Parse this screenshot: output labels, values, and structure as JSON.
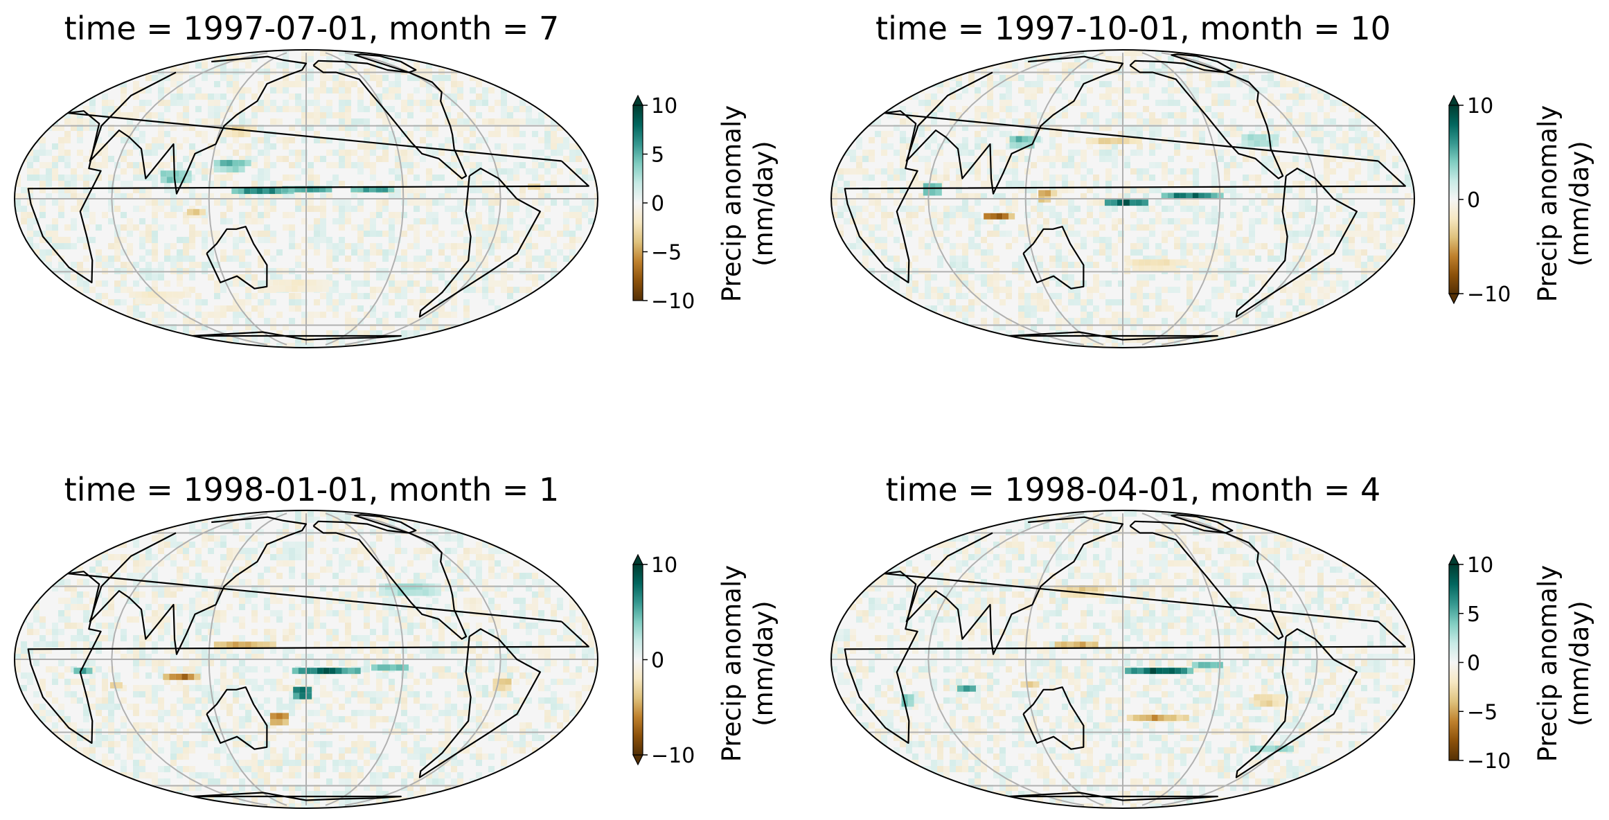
{
  "figure": {
    "colormap": "BrBG",
    "colormap_stops": [
      "#543005",
      "#8c510a",
      "#bf812d",
      "#dfc27d",
      "#f6e8c3",
      "#f5f5f5",
      "#c7eae5",
      "#80cdc1",
      "#35978f",
      "#01665e",
      "#003c30"
    ],
    "background": "#f5f5f5",
    "coastline_color": "#000000",
    "gridline_color": "#b0b0b0"
  },
  "panels": [
    {
      "title": "time = 1997-07-01, month = 7",
      "colorbar": {
        "label_line1": "Precip anomaly",
        "label_line2": "(mm/day)",
        "ticks": [
          "10",
          "5",
          "0",
          "−5",
          "−10"
        ],
        "tick_values": [
          10,
          5,
          0,
          -5,
          -10
        ],
        "range": [
          -10,
          10
        ],
        "extend": "max"
      },
      "anomalies": [
        {
          "lon": 150,
          "lat": 5,
          "value": 9,
          "w": 40,
          "h": 5
        },
        {
          "lon": 180,
          "lat": 6,
          "value": 10,
          "w": 45,
          "h": 4
        },
        {
          "lon": 220,
          "lat": 6,
          "value": 10,
          "w": 40,
          "h": 4
        },
        {
          "lon": 95,
          "lat": 10,
          "value": 6,
          "w": 20,
          "h": 10
        },
        {
          "lon": 130,
          "lat": 15,
          "value": 6,
          "w": 25,
          "h": 8
        },
        {
          "lon": 110,
          "lat": -3,
          "value": -6,
          "w": 15,
          "h": 4
        },
        {
          "lon": 130,
          "lat": 30,
          "value": -4,
          "w": 20,
          "h": 8
        },
        {
          "lon": 320,
          "lat": 7,
          "value": -5,
          "w": 12,
          "h": 4
        },
        {
          "lon": 170,
          "lat": -35,
          "value": -2,
          "w": 40,
          "h": 10
        },
        {
          "lon": 60,
          "lat": -40,
          "value": -2,
          "w": 40,
          "h": 8
        }
      ]
    },
    {
      "title": "time = 1997-10-01, month = 10",
      "colorbar": {
        "label_line1": "Precip anomaly",
        "label_line2": "(mm/day)",
        "ticks": [
          "10",
          "0",
          "−10"
        ],
        "tick_values": [
          10,
          0,
          -10
        ],
        "range": [
          -10,
          10
        ],
        "extend": "both"
      },
      "anomalies": [
        {
          "lon": 100,
          "lat": -5,
          "value": -10,
          "w": 20,
          "h": 5
        },
        {
          "lon": 130,
          "lat": 3,
          "value": -7,
          "w": 12,
          "h": 8
        },
        {
          "lon": 180,
          "lat": 0,
          "value": 10,
          "w": 30,
          "h": 6
        },
        {
          "lon": 220,
          "lat": 3,
          "value": 10,
          "w": 40,
          "h": 5
        },
        {
          "lon": 60,
          "lat": 5,
          "value": 7,
          "w": 15,
          "h": 10
        },
        {
          "lon": 170,
          "lat": 25,
          "value": -4,
          "w": 35,
          "h": 6
        },
        {
          "lon": 270,
          "lat": 25,
          "value": 4,
          "w": 25,
          "h": 10
        },
        {
          "lon": 200,
          "lat": -25,
          "value": -3,
          "w": 40,
          "h": 8
        },
        {
          "lon": 110,
          "lat": 25,
          "value": 6,
          "w": 20,
          "h": 8
        }
      ]
    },
    {
      "title": "time = 1998-01-01, month = 1",
      "colorbar": {
        "label_line1": "Precip anomaly",
        "label_line2": "(mm/day)",
        "ticks": [
          "10",
          "0",
          "−10"
        ],
        "tick_values": [
          10,
          0,
          -10
        ],
        "range": [
          -10,
          10
        ],
        "extend": "both"
      },
      "anomalies": [
        {
          "lon": 190,
          "lat": -3,
          "value": 10,
          "w": 45,
          "h": 6
        },
        {
          "lon": 175,
          "lat": -12,
          "value": 10,
          "w": 14,
          "h": 10
        },
        {
          "lon": 230,
          "lat": -1,
          "value": 9,
          "w": 35,
          "h": 4
        },
        {
          "lon": 140,
          "lat": 8,
          "value": -8,
          "w": 50,
          "h": 4
        },
        {
          "lon": 100,
          "lat": -5,
          "value": -9,
          "w": 25,
          "h": 5
        },
        {
          "lon": 160,
          "lat": -22,
          "value": -8,
          "w": 15,
          "h": 8
        },
        {
          "lon": 40,
          "lat": -3,
          "value": 8,
          "w": 15,
          "h": 6
        },
        {
          "lon": 60,
          "lat": -8,
          "value": -6,
          "w": 12,
          "h": 4
        },
        {
          "lon": 300,
          "lat": -8,
          "value": -5,
          "w": 15,
          "h": 8
        },
        {
          "lon": 250,
          "lat": 30,
          "value": 4,
          "w": 40,
          "h": 10
        }
      ]
    },
    {
      "title": "time = 1998-04-01, month = 4",
      "colorbar": {
        "label_line1": "Precip anomaly",
        "label_line2": "(mm/day)",
        "ticks": [
          "10",
          "5",
          "0",
          "−5",
          "−10"
        ],
        "tick_values": [
          10,
          5,
          0,
          -5,
          -10
        ],
        "range": [
          -10,
          10
        ],
        "extend": "max"
      },
      "anomalies": [
        {
          "lon": 200,
          "lat": -3,
          "value": 10,
          "w": 45,
          "h": 6
        },
        {
          "lon": 230,
          "lat": 0,
          "value": 8,
          "w": 30,
          "h": 4
        },
        {
          "lon": 150,
          "lat": 8,
          "value": -8,
          "w": 40,
          "h": 4
        },
        {
          "lon": 200,
          "lat": -22,
          "value": -6,
          "w": 40,
          "h": 6
        },
        {
          "lon": 80,
          "lat": -10,
          "value": 7,
          "w": 15,
          "h": 6
        },
        {
          "lon": 120,
          "lat": -8,
          "value": -5,
          "w": 15,
          "h": 5
        },
        {
          "lon": 150,
          "lat": 30,
          "value": -4,
          "w": 40,
          "h": 8
        },
        {
          "lon": 290,
          "lat": -35,
          "value": 6,
          "w": 40,
          "h": 4
        },
        {
          "lon": 40,
          "lat": -15,
          "value": 6,
          "w": 10,
          "h": 10
        },
        {
          "lon": 270,
          "lat": -15,
          "value": -4,
          "w": 20,
          "h": 10
        }
      ]
    }
  ]
}
